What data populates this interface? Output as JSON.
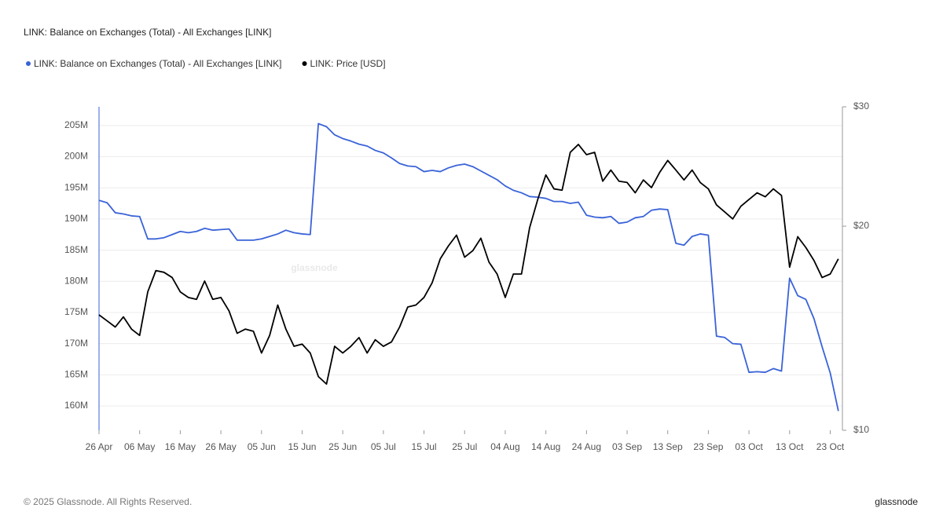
{
  "chart_data": {
    "type": "line",
    "title": "LINK: Balance on Exchanges (Total) - All Exchanges [LINK]",
    "watermark": "glassnode",
    "x": [
      "26 Apr",
      "28 Apr",
      "30 Apr",
      "2 May",
      "4 May",
      "6 May",
      "8 May",
      "10 May",
      "12 May",
      "14 May",
      "16 May",
      "18 May",
      "20 May",
      "22 May",
      "24 May",
      "26 May",
      "28 May",
      "30 May",
      "1 Jun",
      "3 Jun",
      "5 Jun",
      "7 Jun",
      "9 Jun",
      "11 Jun",
      "13 Jun",
      "15 Jun",
      "17 Jun",
      "19 Jun",
      "21 Jun",
      "23 Jun",
      "25 Jun",
      "27 Jun",
      "29 Jun",
      "1 Jul",
      "3 Jul",
      "5 Jul",
      "7 Jul",
      "9 Jul",
      "11 Jul",
      "13 Jul",
      "15 Jul",
      "17 Jul",
      "19 Jul",
      "21 Jul",
      "23 Jul",
      "25 Jul",
      "27 Jul",
      "29 Jul",
      "31 Jul",
      "2 Aug",
      "4 Aug",
      "6 Aug",
      "8 Aug",
      "10 Aug",
      "12 Aug",
      "14 Aug",
      "16 Aug",
      "18 Aug",
      "20 Aug",
      "22 Aug",
      "24 Aug",
      "26 Aug",
      "28 Aug",
      "30 Aug",
      "1 Sep",
      "3 Sep",
      "5 Sep",
      "7 Sep",
      "9 Sep",
      "11 Sep",
      "13 Sep",
      "15 Sep",
      "17 Sep",
      "19 Sep",
      "21 Sep",
      "23 Sep",
      "25 Sep",
      "27 Sep",
      "29 Sep",
      "1 Oct",
      "3 Oct",
      "5 Oct",
      "7 Oct",
      "9 Oct",
      "11 Oct",
      "13 Oct",
      "15 Oct",
      "17 Oct",
      "19 Oct",
      "21 Oct",
      "23 Oct",
      "25 Oct"
    ],
    "xlim": [
      "26 Apr",
      "26 Oct"
    ],
    "xticks": [
      "26 Apr",
      "06 May",
      "16 May",
      "26 May",
      "05 Jun",
      "15 Jun",
      "25 Jun",
      "05 Jul",
      "15 Jul",
      "25 Jul",
      "04 Aug",
      "14 Aug",
      "24 Aug",
      "03 Sep",
      "13 Sep",
      "23 Sep",
      "03 Oct",
      "13 Oct",
      "23 Oct"
    ],
    "ylim": [
      156100000,
      208000000
    ],
    "yticks": [
      {
        "value": 160000000,
        "label": "160M"
      },
      {
        "value": 165000000,
        "label": "165M"
      },
      {
        "value": 170000000,
        "label": "170M"
      },
      {
        "value": 175000000,
        "label": "175M"
      },
      {
        "value": 180000000,
        "label": "180M"
      },
      {
        "value": 185000000,
        "label": "185M"
      },
      {
        "value": 190000000,
        "label": "190M"
      },
      {
        "value": 195000000,
        "label": "195M"
      },
      {
        "value": 200000000,
        "label": "200M"
      },
      {
        "value": 205000000,
        "label": "205M"
      }
    ],
    "y2lim": [
      10,
      30
    ],
    "y2scale": "log",
    "y2ticks": [
      {
        "value": 10,
        "label": "$10"
      },
      {
        "value": 20,
        "label": "$20"
      },
      {
        "value": 30,
        "label": "$30"
      }
    ],
    "grid": true,
    "legend": "top-left",
    "series": [
      {
        "name": "LINK: Balance on Exchanges (Total) - All Exchanges [LINK]",
        "color": "#3a63d8",
        "values": [
          193000000,
          192600000,
          191000000,
          190800000,
          190500000,
          190400000,
          186800000,
          186800000,
          187000000,
          187500000,
          188000000,
          187800000,
          188000000,
          188500000,
          188200000,
          188300000,
          188400000,
          186600000,
          186600000,
          186600000,
          186800000,
          187200000,
          187600000,
          188200000,
          187800000,
          187600000,
          187500000,
          205300000,
          204800000,
          203500000,
          202900000,
          202500000,
          202000000,
          201700000,
          201000000,
          200600000,
          199800000,
          198900000,
          198500000,
          198400000,
          197600000,
          197800000,
          197600000,
          198200000,
          198600000,
          198800000,
          198400000,
          197700000,
          197000000,
          196300000,
          195300000,
          194600000,
          194200000,
          193600000,
          193500000,
          193300000,
          192800000,
          192800000,
          192500000,
          192700000,
          190600000,
          190300000,
          190200000,
          190400000,
          189300000,
          189500000,
          190200000,
          190400000,
          191400000,
          191600000,
          191500000,
          186100000,
          185800000,
          187200000,
          187600000,
          187400000,
          171200000,
          171000000,
          170000000,
          169900000,
          165400000,
          165500000,
          165400000,
          166000000,
          165600000,
          180500000,
          177700000,
          177100000,
          174000000,
          169500000,
          165300000,
          159200000
        ]
      },
      {
        "name": "LINK: Price [USD]",
        "color": "#000000",
        "axis": "y2",
        "values": [
          14.8,
          14.5,
          14.2,
          14.7,
          14.1,
          13.8,
          16.0,
          17.2,
          17.1,
          16.8,
          16.0,
          15.7,
          15.6,
          16.6,
          15.6,
          15.7,
          15.0,
          13.9,
          14.1,
          14.0,
          13.0,
          13.8,
          15.3,
          14.1,
          13.3,
          13.4,
          13.0,
          12.0,
          11.7,
          13.3,
          13.0,
          13.3,
          13.7,
          13.0,
          13.6,
          13.3,
          13.5,
          14.2,
          15.2,
          15.3,
          15.7,
          16.5,
          17.9,
          18.7,
          19.4,
          18.0,
          18.4,
          19.2,
          17.7,
          17.0,
          15.7,
          17.0,
          17.0,
          19.9,
          21.9,
          23.8,
          22.7,
          22.6,
          25.7,
          26.4,
          25.5,
          25.7,
          23.3,
          24.2,
          23.3,
          23.2,
          22.4,
          23.4,
          22.8,
          24.0,
          25.0,
          24.2,
          23.4,
          24.2,
          23.2,
          22.7,
          21.5,
          21.0,
          20.5,
          21.4,
          21.9,
          22.4,
          22.1,
          22.7,
          22.2,
          17.4,
          19.3,
          18.6,
          17.8,
          16.8,
          17.0,
          17.9
        ]
      }
    ]
  },
  "footer": {
    "copyright": "© 2025 Glassnode. All Rights Reserved.",
    "logo": "glassnode"
  }
}
